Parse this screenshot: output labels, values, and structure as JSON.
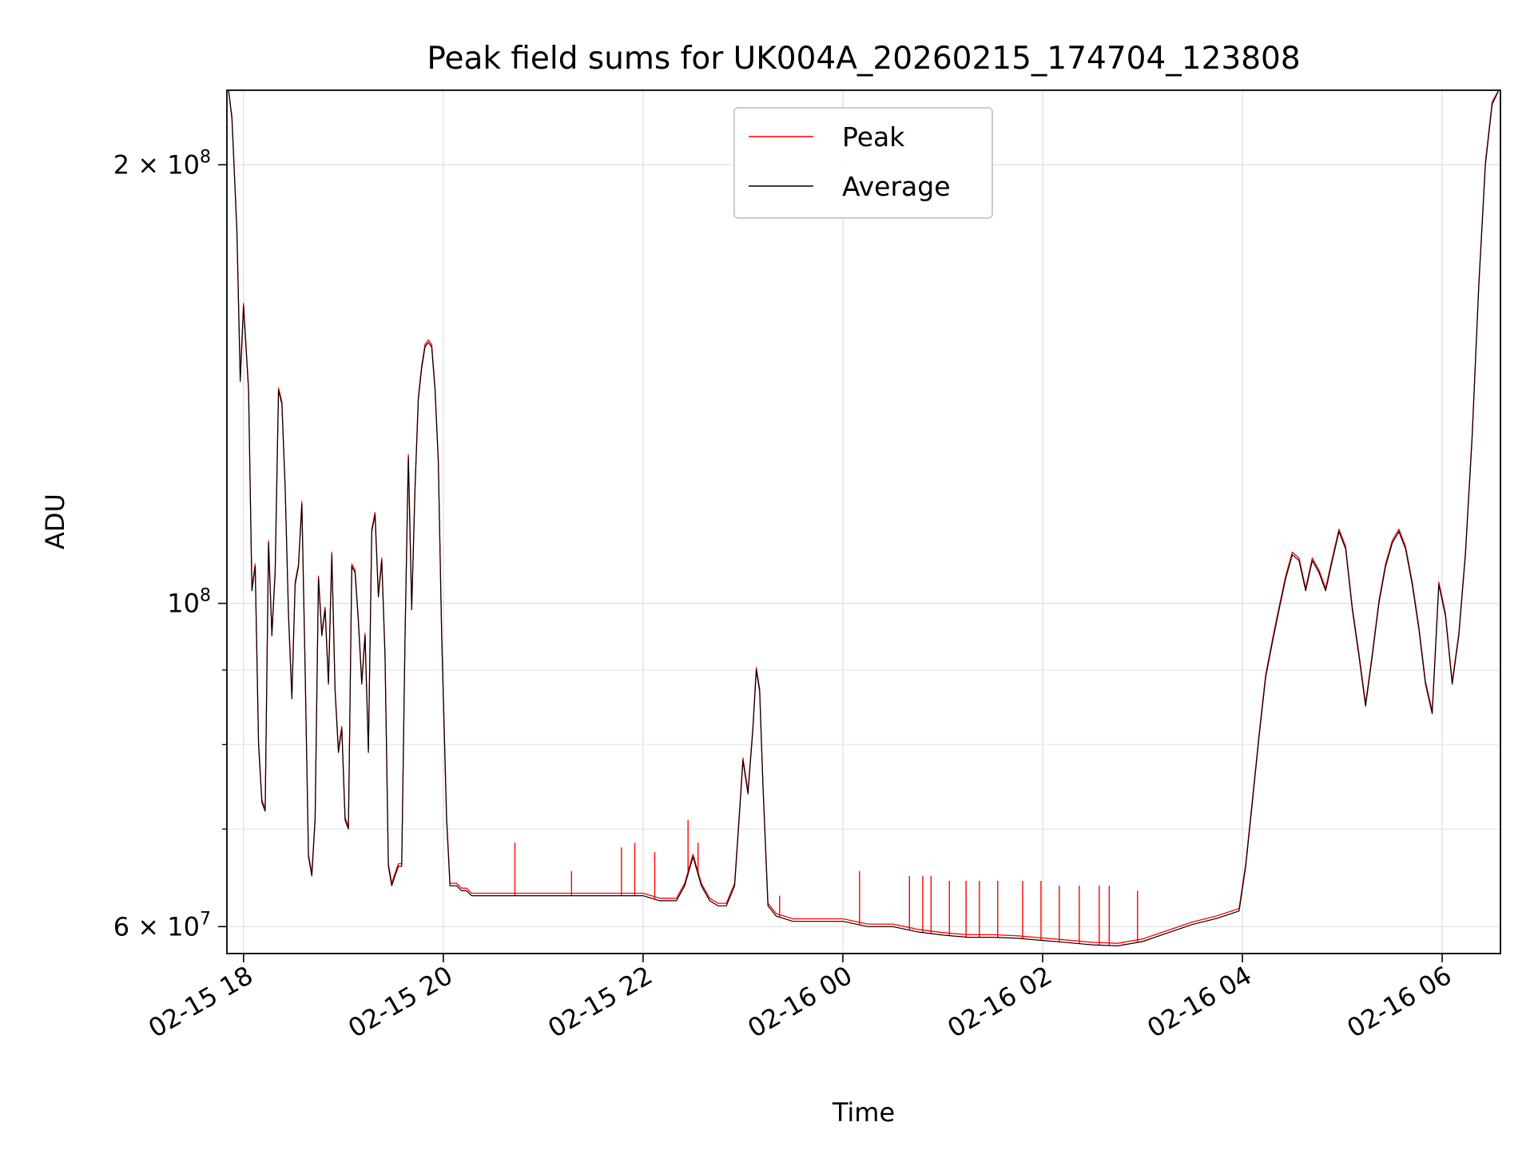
{
  "chart_data": {
    "type": "line",
    "title": "Peak field sums for UK004A_20260215_174704_123808",
    "xlabel": "Time",
    "ylabel": "ADU",
    "y_scale": "log",
    "ylim": [
      57500000,
      225000000
    ],
    "xlim": [
      "2026-02-15 17:50",
      "2026-02-16 06:35"
    ],
    "x_ticks": [
      {
        "t": "2026-02-15 18:00",
        "label": "02-15 18"
      },
      {
        "t": "2026-02-15 20:00",
        "label": "02-15 20"
      },
      {
        "t": "2026-02-15 22:00",
        "label": "02-15 22"
      },
      {
        "t": "2026-02-16 00:00",
        "label": "02-16 00"
      },
      {
        "t": "2026-02-16 02:00",
        "label": "02-16 02"
      },
      {
        "t": "2026-02-16 04:00",
        "label": "02-16 04"
      },
      {
        "t": "2026-02-16 06:00",
        "label": "02-16 06"
      }
    ],
    "y_ticks": [
      {
        "v": 60000000,
        "label": "6 × 10",
        "exp": "7"
      },
      {
        "v": 100000000,
        "label": "10",
        "exp": "8"
      },
      {
        "v": 200000000,
        "label": "2 × 10",
        "exp": "8"
      }
    ],
    "y_minor_ticks": [
      70000000,
      80000000,
      90000000
    ],
    "grid": true,
    "legend": {
      "placement": "upper center"
    },
    "series": [
      {
        "name": "Peak",
        "color": "#ff0000"
      },
      {
        "name": "Average",
        "color": "#000000"
      }
    ],
    "x": [
      "2026-02-15 17:51",
      "2026-02-15 17:53",
      "2026-02-15 17:56",
      "2026-02-15 17:58",
      "2026-02-15 18:00",
      "2026-02-15 18:03",
      "2026-02-15 18:05",
      "2026-02-15 18:07",
      "2026-02-15 18:09",
      "2026-02-15 18:11",
      "2026-02-15 18:13",
      "2026-02-15 18:15",
      "2026-02-15 18:17",
      "2026-02-15 18:19",
      "2026-02-15 18:21",
      "2026-02-15 18:23",
      "2026-02-15 18:25",
      "2026-02-15 18:27",
      "2026-02-15 18:29",
      "2026-02-15 18:31",
      "2026-02-15 18:33",
      "2026-02-15 18:35",
      "2026-02-15 18:37",
      "2026-02-15 18:39",
      "2026-02-15 18:41",
      "2026-02-15 18:43",
      "2026-02-15 18:45",
      "2026-02-15 18:47",
      "2026-02-15 18:49",
      "2026-02-15 18:51",
      "2026-02-15 18:53",
      "2026-02-15 18:55",
      "2026-02-15 18:57",
      "2026-02-15 18:59",
      "2026-02-15 19:01",
      "2026-02-15 19:03",
      "2026-02-15 19:05",
      "2026-02-15 19:07",
      "2026-02-15 19:09",
      "2026-02-15 19:11",
      "2026-02-15 19:13",
      "2026-02-15 19:15",
      "2026-02-15 19:17",
      "2026-02-15 19:19",
      "2026-02-15 19:21",
      "2026-02-15 19:23",
      "2026-02-15 19:25",
      "2026-02-15 19:27",
      "2026-02-15 19:29",
      "2026-02-15 19:31",
      "2026-02-15 19:33",
      "2026-02-15 19:35",
      "2026-02-15 19:37",
      "2026-02-15 19:39",
      "2026-02-15 19:41",
      "2026-02-15 19:43",
      "2026-02-15 19:45",
      "2026-02-15 19:47",
      "2026-02-15 19:49",
      "2026-02-15 19:51",
      "2026-02-15 19:53",
      "2026-02-15 19:55",
      "2026-02-15 19:57",
      "2026-02-15 19:59",
      "2026-02-15 20:02",
      "2026-02-15 20:04",
      "2026-02-15 20:06",
      "2026-02-15 20:08",
      "2026-02-15 20:11",
      "2026-02-15 20:14",
      "2026-02-15 20:17",
      "2026-02-15 20:20",
      "2026-02-15 20:23",
      "2026-02-15 20:26",
      "2026-02-15 20:29",
      "2026-02-15 20:33",
      "2026-02-15 20:38",
      "2026-02-15 20:45",
      "2026-02-15 20:52",
      "2026-02-15 21:00",
      "2026-02-15 21:10",
      "2026-02-15 21:20",
      "2026-02-15 21:30",
      "2026-02-15 21:40",
      "2026-02-15 21:50",
      "2026-02-15 22:00",
      "2026-02-15 22:10",
      "2026-02-15 22:20",
      "2026-02-15 22:25",
      "2026-02-15 22:30",
      "2026-02-15 22:35",
      "2026-02-15 22:40",
      "2026-02-15 22:45",
      "2026-02-15 22:50",
      "2026-02-15 22:55",
      "2026-02-15 22:58",
      "2026-02-15 23:00",
      "2026-02-15 23:03",
      "2026-02-15 23:06",
      "2026-02-15 23:08",
      "2026-02-15 23:10",
      "2026-02-15 23:12",
      "2026-02-15 23:15",
      "2026-02-15 23:20",
      "2026-02-15 23:30",
      "2026-02-15 23:45",
      "2026-02-16 00:00",
      "2026-02-16 00:15",
      "2026-02-16 00:30",
      "2026-02-16 00:45",
      "2026-02-16 01:00",
      "2026-02-16 01:15",
      "2026-02-16 01:30",
      "2026-02-16 01:45",
      "2026-02-16 02:00",
      "2026-02-16 02:15",
      "2026-02-16 02:30",
      "2026-02-16 02:45",
      "2026-02-16 03:00",
      "2026-02-16 03:15",
      "2026-02-16 03:30",
      "2026-02-16 03:45",
      "2026-02-16 03:58",
      "2026-02-16 04:02",
      "2026-02-16 04:06",
      "2026-02-16 04:10",
      "2026-02-16 04:14",
      "2026-02-16 04:18",
      "2026-02-16 04:22",
      "2026-02-16 04:26",
      "2026-02-16 04:30",
      "2026-02-16 04:34",
      "2026-02-16 04:38",
      "2026-02-16 04:42",
      "2026-02-16 04:46",
      "2026-02-16 04:50",
      "2026-02-16 04:54",
      "2026-02-16 04:58",
      "2026-02-16 05:02",
      "2026-02-16 05:06",
      "2026-02-16 05:10",
      "2026-02-16 05:14",
      "2026-02-16 05:18",
      "2026-02-16 05:22",
      "2026-02-16 05:26",
      "2026-02-16 05:30",
      "2026-02-16 05:34",
      "2026-02-16 05:38",
      "2026-02-16 05:42",
      "2026-02-16 05:46",
      "2026-02-16 05:50",
      "2026-02-16 05:54",
      "2026-02-16 05:58",
      "2026-02-16 06:02",
      "2026-02-16 06:06",
      "2026-02-16 06:10",
      "2026-02-16 06:14",
      "2026-02-16 06:18",
      "2026-02-16 06:22",
      "2026-02-16 06:26",
      "2026-02-16 06:30",
      "2026-02-16 06:34"
    ],
    "average_values": [
      225000000,
      215000000,
      180000000,
      142000000,
      160000000,
      140000000,
      102000000,
      106000000,
      80000000,
      73000000,
      72000000,
      110000000,
      95000000,
      105000000,
      140000000,
      137000000,
      120000000,
      98000000,
      86000000,
      103000000,
      106000000,
      117000000,
      90000000,
      67000000,
      65000000,
      71000000,
      104000000,
      95000000,
      99000000,
      88000000,
      108000000,
      87000000,
      79000000,
      82000000,
      71000000,
      70000000,
      106000000,
      105000000,
      97000000,
      88000000,
      95000000,
      79000000,
      112000000,
      115000000,
      101000000,
      107000000,
      92000000,
      66000000,
      64000000,
      65000000,
      66000000,
      66000000,
      95000000,
      126000000,
      99000000,
      120000000,
      138000000,
      145000000,
      150000000,
      151000000,
      150000000,
      140000000,
      125000000,
      95000000,
      71000000,
      64000000,
      64000000,
      64000000,
      63500000,
      63500000,
      63000000,
      63000000,
      63000000,
      63000000,
      63000000,
      63000000,
      63000000,
      63000000,
      63000000,
      63000000,
      63000000,
      63000000,
      63000000,
      63000000,
      63000000,
      63000000,
      62500000,
      62500000,
      64000000,
      67000000,
      64000000,
      62500000,
      62000000,
      62000000,
      64000000,
      72000000,
      78000000,
      74000000,
      82000000,
      90000000,
      87000000,
      75000000,
      62000000,
      61000000,
      60500000,
      60500000,
      60500000,
      60000000,
      60000000,
      59500000,
      59200000,
      59000000,
      59000000,
      58900000,
      58700000,
      58500000,
      58300000,
      58200000,
      58600000,
      59400000,
      60200000,
      60800000,
      61500000,
      66000000,
      73000000,
      81000000,
      89000000,
      94000000,
      99000000,
      104000000,
      108000000,
      107000000,
      102000000,
      107000000,
      105000000,
      102000000,
      107000000,
      112000000,
      109000000,
      99000000,
      92000000,
      85000000,
      92000000,
      100000000,
      106000000,
      110000000,
      112000000,
      109000000,
      103000000,
      96000000,
      88000000,
      84000000,
      103000000,
      98000000,
      88000000,
      95000000,
      108000000,
      130000000,
      165000000,
      200000000,
      220000000,
      225000000
    ],
    "peak_spikes": [
      {
        "t": "2026-02-15 20:43",
        "v": 68500000
      },
      {
        "t": "2026-02-15 21:17",
        "v": 65500000
      },
      {
        "t": "2026-02-15 21:47",
        "v": 68000000
      },
      {
        "t": "2026-02-15 21:55",
        "v": 68500000
      },
      {
        "t": "2026-02-15 22:07",
        "v": 67500000
      },
      {
        "t": "2026-02-15 22:27",
        "v": 71000000
      },
      {
        "t": "2026-02-15 22:33",
        "v": 68500000
      },
      {
        "t": "2026-02-15 23:22",
        "v": 63000000
      },
      {
        "t": "2026-02-16 00:10",
        "v": 65500000
      },
      {
        "t": "2026-02-16 00:40",
        "v": 65000000
      },
      {
        "t": "2026-02-16 00:48",
        "v": 65000000
      },
      {
        "t": "2026-02-16 00:53",
        "v": 65000000
      },
      {
        "t": "2026-02-16 01:04",
        "v": 64500000
      },
      {
        "t": "2026-02-16 01:14",
        "v": 64500000
      },
      {
        "t": "2026-02-16 01:22",
        "v": 64500000
      },
      {
        "t": "2026-02-16 01:33",
        "v": 64500000
      },
      {
        "t": "2026-02-16 01:48",
        "v": 64500000
      },
      {
        "t": "2026-02-16 01:59",
        "v": 64500000
      },
      {
        "t": "2026-02-16 02:10",
        "v": 64000000
      },
      {
        "t": "2026-02-16 02:22",
        "v": 64000000
      },
      {
        "t": "2026-02-16 02:34",
        "v": 64000000
      },
      {
        "t": "2026-02-16 02:40",
        "v": 64000000
      },
      {
        "t": "2026-02-16 02:57",
        "v": 63500000
      }
    ]
  }
}
